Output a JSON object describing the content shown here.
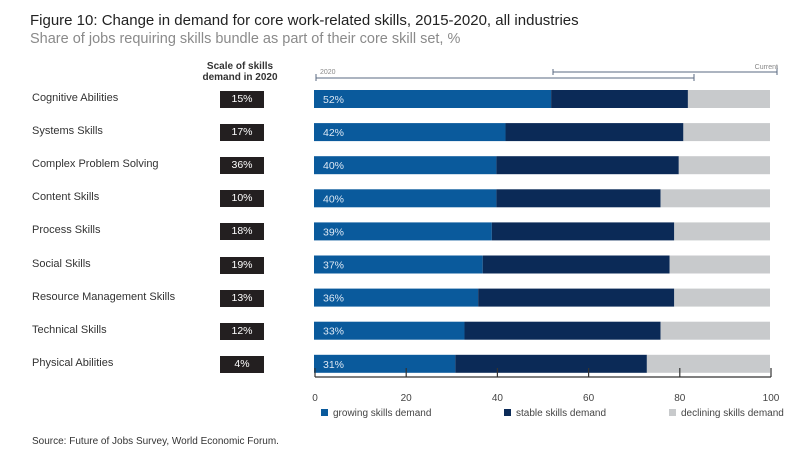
{
  "chart_data": {
    "type": "bar",
    "orientation": "horizontal",
    "stacked": true,
    "title": "Figure 10: Change in demand for core work-related skills, 2015-2020, all industries",
    "subtitle": "Share of jobs requiring skills bundle as part of their core skill set, %",
    "scale_header": "Scale of skills demand in 2020",
    "bracket_labels": {
      "left": "2020",
      "right": "Current"
    },
    "categories": [
      "Cognitive Abilities",
      "Systems Skills",
      "Complex Problem Solving",
      "Content Skills",
      "Process Skills",
      "Social Skills",
      "Resource Management Skills",
      "Technical Skills",
      "Physical Abilities"
    ],
    "scale_values": [
      "15%",
      "17%",
      "36%",
      "10%",
      "18%",
      "19%",
      "13%",
      "12%",
      "4%"
    ],
    "series": [
      {
        "name": "growing skills demand",
        "color": "#0a5a9c",
        "values": [
          52,
          42,
          40,
          40,
          39,
          37,
          36,
          33,
          31
        ],
        "labels": [
          "52%",
          "42%",
          "40%",
          "40%",
          "39%",
          "37%",
          "36%",
          "33%",
          "31%"
        ]
      },
      {
        "name": "stable skills demand",
        "color": "#0b2a57",
        "values": [
          30,
          39,
          40,
          36,
          40,
          41,
          43,
          43,
          42
        ]
      },
      {
        "name": "declining skills demand",
        "color": "#c8cacc",
        "values": [
          18,
          19,
          20,
          24,
          21,
          22,
          21,
          24,
          27
        ]
      }
    ],
    "xlim": [
      0,
      100
    ],
    "xticks": [
      "0",
      "20",
      "40",
      "60",
      "80",
      "100"
    ],
    "legend": "bottom",
    "grid": false,
    "source": "Source: Future of Jobs Survey, World Economic Forum."
  }
}
